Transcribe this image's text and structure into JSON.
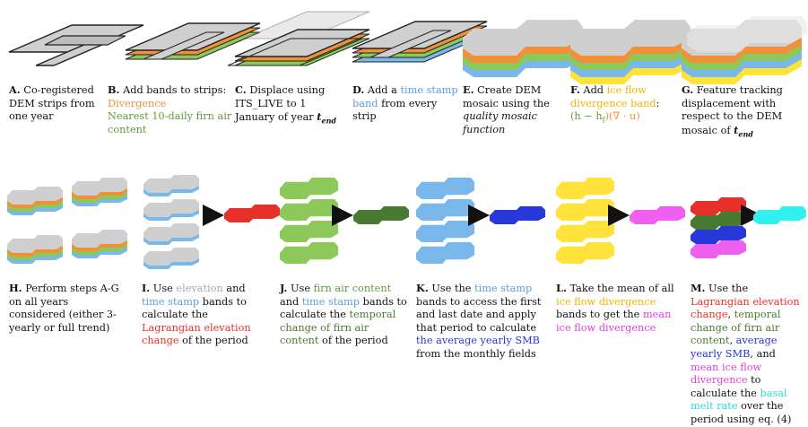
{
  "steps": {
    "A": {
      "letter": "A.",
      "text": " Co-registered DEM strips from one year"
    },
    "B": {
      "letter": "B.",
      "text": " Add bands to strips:",
      "line2": "Divergence",
      "line3": "Nearest 10-daily firn air content"
    },
    "C": {
      "letter": "C.",
      "text": " Displace using ITS_LIVE to 1 January of year ",
      "sym": "t_end",
      "sym_main": "t",
      "sym_sub": "end"
    },
    "D": {
      "letter": "D.",
      "pre": " Add a ",
      "hl": "time stamp band",
      "post": " from every strip"
    },
    "E": {
      "letter": "E.",
      "text": " Create DEM mosaic using the ",
      "it": "quality mosaic function"
    },
    "F": {
      "letter": "F.",
      "pre": " Add ",
      "hl": "ice flow divergence band",
      "post": ":",
      "formula_a": "(h − h",
      "formula_sub": "f",
      "formula_b": ")(∇ · u)"
    },
    "G": {
      "letter": "G.",
      "text": " Feature tracking displacement with respect to the DEM mosaic of ",
      "sym_main": "t",
      "sym_sub": "end"
    },
    "H": {
      "letter": "H.",
      "text": " Perform steps A-G on all years considered (either 3-yearly or full trend)"
    },
    "I": {
      "letter": "I.",
      "p1": " Use ",
      "h1": "elevation",
      "p2": " and ",
      "h2": "time stamp",
      "p3": " bands to calculate the ",
      "h3": "Lagrangian elevation change",
      "p4": " of the period"
    },
    "J": {
      "letter": "J.",
      "p1": " Use ",
      "h1": "firn air content",
      "p2": " and ",
      "h2": "time stamp",
      "p3": " bands to calculate the ",
      "h3": "temporal change of firn air content",
      "p4": " of the period"
    },
    "K": {
      "letter": "K.",
      "p1": " Use the ",
      "h1": "time stamp",
      "p2": " bands to access the first and last date and apply that period to calculate ",
      "h2": "the average yearly SMB",
      "p3": " from the monthly fields"
    },
    "L": {
      "letter": "L.",
      "p1": " Take the mean of all ",
      "h1": "ice flow divergence",
      "p2": " bands to get the ",
      "h2": "mean ice flow divergence"
    },
    "M": {
      "letter": "M.",
      "p1": " Use the ",
      "h1": "Lagrangian elevation change",
      "p2": ", ",
      "h2": "temporal change of firn air content",
      "p3": ", ",
      "h3": "average yearly SMB",
      "p4": ", and ",
      "h4": "mean ice flow divergence",
      "p5": " to calculate the ",
      "h5": "basal melt rate",
      "p6": " over the period using eq. (4)"
    }
  },
  "colors": {
    "strip_fill": "#cfcfcf",
    "strip_stroke": "#222222",
    "orange": "#f0913a",
    "green": "#8cc95a",
    "blue": "#7ab8ec",
    "red": "#e8302a",
    "dark_green": "#4a7a32",
    "dark_blue": "#2638d8",
    "yellow": "#ffe23a",
    "magenta": "#f060f0",
    "cyan": "#30f0f0",
    "arrow": "#111111"
  }
}
